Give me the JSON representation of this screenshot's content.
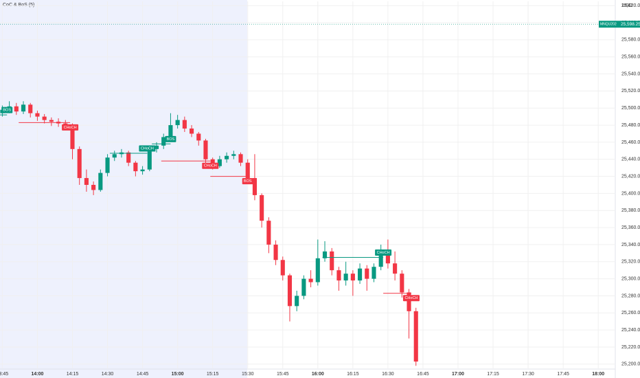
{
  "chart_data": {
    "type": "candlestick",
    "title": "CoC & BoS (5)",
    "y_unit": "USD",
    "symbol": "MNQU2026",
    "last_price": {
      "value": 25598.25,
      "label": "25,598.25"
    },
    "up_color": "#089981",
    "down_color": "#f23645",
    "x": [
      "13:45",
      "13:48",
      "13:51",
      "13:54",
      "13:57",
      "14:00",
      "14:03",
      "14:06",
      "14:09",
      "14:12",
      "14:15",
      "14:18",
      "14:21",
      "14:24",
      "14:27",
      "14:30",
      "14:33",
      "14:36",
      "14:39",
      "14:42",
      "14:45",
      "14:48",
      "14:51",
      "14:54",
      "14:57",
      "15:00",
      "15:03",
      "15:06",
      "15:09",
      "15:12",
      "15:15",
      "15:18",
      "15:21",
      "15:24",
      "15:27",
      "15:30",
      "15:33",
      "15:36",
      "15:39",
      "15:42",
      "15:45",
      "15:48",
      "15:51",
      "15:54",
      "15:57",
      "16:00",
      "16:03",
      "16:06",
      "16:09",
      "16:12",
      "16:15",
      "16:18",
      "16:21",
      "16:24",
      "16:27",
      "16:30",
      "16:33",
      "16:36",
      "16:39",
      "16:42"
    ],
    "open": [
      25494,
      25498,
      25502,
      25496,
      25504,
      25494,
      25490,
      25486,
      25484,
      25482,
      25480,
      25452,
      25418,
      25410,
      25404,
      25424,
      25442,
      25446,
      25448,
      25436,
      25426,
      25428,
      25452,
      25456,
      25466,
      25480,
      25486,
      25476,
      25470,
      25462,
      25440,
      25432,
      25440,
      25444,
      25446,
      25436,
      25418,
      25398,
      25368,
      25340,
      25322,
      25304,
      25268,
      25280,
      25300,
      25296,
      25324,
      25332,
      25310,
      25298,
      25306,
      25298,
      25312,
      25300,
      25314,
      25330,
      25318,
      25306,
      25284,
      25262
    ],
    "high": [
      25503,
      25508,
      25506,
      25508,
      25506,
      25497,
      25493,
      25489,
      25488,
      25486,
      25482,
      25455,
      25428,
      25414,
      25428,
      25446,
      25450,
      25452,
      25450,
      25438,
      25432,
      25456,
      25460,
      25470,
      25494,
      25492,
      25490,
      25480,
      25472,
      25464,
      25442,
      25444,
      25448,
      25450,
      25448,
      25440,
      25446,
      25400,
      25372,
      25345,
      25326,
      25306,
      25286,
      25304,
      25310,
      25346,
      25344,
      25336,
      25314,
      25320,
      25310,
      25318,
      25316,
      25318,
      25340,
      25346,
      25332,
      25310,
      25288,
      25266
    ],
    "low": [
      25490,
      25494,
      25492,
      25493,
      25489,
      25485,
      25482,
      25479,
      25478,
      25474,
      25440,
      25410,
      25402,
      25398,
      25402,
      25420,
      25438,
      25442,
      25432,
      25420,
      25422,
      25426,
      25448,
      25452,
      25462,
      25476,
      25472,
      25466,
      25456,
      25434,
      25428,
      25430,
      25436,
      25440,
      25432,
      25412,
      25392,
      25360,
      25330,
      25316,
      25298,
      25250,
      25262,
      25276,
      25290,
      25292,
      25320,
      25304,
      25286,
      25292,
      25280,
      25294,
      25286,
      25296,
      25310,
      25312,
      25298,
      25278,
      25230,
      25198
    ],
    "close": [
      25498,
      25502,
      25496,
      25504,
      25494,
      25490,
      25486,
      25484,
      25482,
      25480,
      25452,
      25418,
      25410,
      25404,
      25424,
      25442,
      25446,
      25448,
      25436,
      25426,
      25428,
      25452,
      25456,
      25466,
      25480,
      25486,
      25476,
      25470,
      25462,
      25440,
      25432,
      25440,
      25444,
      25446,
      25436,
      25418,
      25398,
      25368,
      25340,
      25322,
      25304,
      25268,
      25280,
      25300,
      25296,
      25324,
      25332,
      25310,
      25298,
      25306,
      25298,
      25312,
      25300,
      25314,
      25330,
      25318,
      25306,
      25284,
      25262,
      25203
    ],
    "xlim": [
      "13:44",
      "18:07"
    ],
    "xticks": [
      "13:45",
      "14:00",
      "14:15",
      "14:30",
      "14:45",
      "15:00",
      "15:15",
      "15:30",
      "15:45",
      "16:00",
      "16:15",
      "16:30",
      "16:45",
      "17:00",
      "17:15",
      "17:30",
      "17:45",
      "18:00"
    ],
    "ylim": [
      25195,
      25625
    ],
    "yticks": [
      {
        "value": 25200,
        "label": "25,200.00"
      },
      {
        "value": 25220,
        "label": "25,220.00"
      },
      {
        "value": 25240,
        "label": "25,240.00"
      },
      {
        "value": 25260,
        "label": "25,260.00"
      },
      {
        "value": 25280,
        "label": "25,280.00"
      },
      {
        "value": 25300,
        "label": "25,300.00"
      },
      {
        "value": 25320,
        "label": "25,320.00"
      },
      {
        "value": 25340,
        "label": "25,340.00"
      },
      {
        "value": 25360,
        "label": "25,360.00"
      },
      {
        "value": 25380,
        "label": "25,380.00"
      },
      {
        "value": 25400,
        "label": "25,400.00"
      },
      {
        "value": 25420,
        "label": "25,420.00"
      },
      {
        "value": 25440,
        "label": "25,440.00"
      },
      {
        "value": 25460,
        "label": "25,460.00"
      },
      {
        "value": 25480,
        "label": "25,480.00"
      },
      {
        "value": 25500,
        "label": "25,500.00"
      },
      {
        "value": 25520,
        "label": "25,520.00"
      },
      {
        "value": 25540,
        "label": "25,540.00"
      },
      {
        "value": 25560,
        "label": "25,560.00"
      },
      {
        "value": 25580,
        "label": "25,580.00"
      },
      {
        "value": 25600,
        "label": "25,600.00"
      },
      {
        "value": 25620,
        "label": "25,620.00"
      }
    ],
    "annotations": [
      {
        "text": "BOS",
        "price": 25492,
        "from": "13:44",
        "to": "13:47",
        "color": "#089981"
      },
      {
        "text": "CHoCH",
        "price": 25483,
        "from": "13:52",
        "to": "14:14",
        "color": "#f23645"
      },
      {
        "text": "CHoCH",
        "price": 25447,
        "from": "14:31",
        "to": "14:47",
        "color": "#089981"
      },
      {
        "text": "BOS",
        "price": 25458,
        "from": "14:49",
        "to": "14:57",
        "color": "#089981"
      },
      {
        "text": "CHoCH",
        "price": 25438,
        "from": "14:53",
        "to": "15:14",
        "color": "#f23645"
      },
      {
        "text": "BOS",
        "price": 25420,
        "from": "15:14",
        "to": "15:30",
        "color": "#f23645"
      },
      {
        "text": "CHoCH",
        "price": 25325,
        "from": "16:02",
        "to": "16:28",
        "color": "#089981"
      },
      {
        "text": "CHoCH",
        "price": 25283,
        "from": "16:28",
        "to": "16:40",
        "color": "#f23645"
      }
    ]
  }
}
